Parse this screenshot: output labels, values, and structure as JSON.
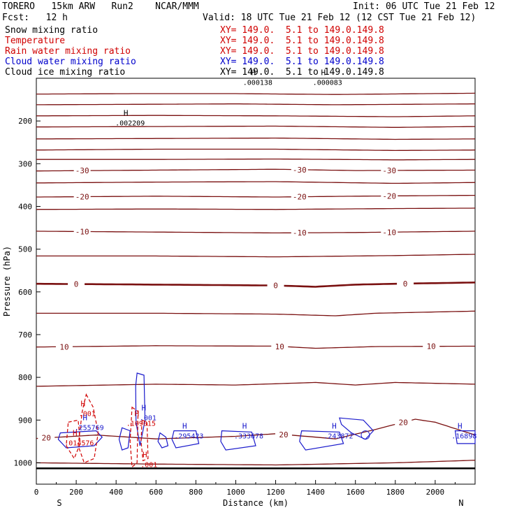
{
  "header": {
    "model": "TORERO   15km ARW   Run2    NCAR/MMM",
    "init": "Init: 06 UTC Tue 21 Feb 12",
    "fcst": "Fcst:   12 h",
    "valid": "Valid: 18 UTC Tue 21 Feb 12 (12 CST Tue 21 Feb 12)"
  },
  "legend": [
    {
      "name": "Snow mixing ratio",
      "color": "#000000",
      "xy": "XY= 149.0.  5.1 to 149.0.149.8"
    },
    {
      "name": "Temperature",
      "color": "#d00000",
      "xy": "XY= 149.0.  5.1 to 149.0.149.8"
    },
    {
      "name": "Rain water mixing ratio",
      "color": "#d00000",
      "xy": "XY= 149.0.  5.1 to 149.0.149.8"
    },
    {
      "name": "Cloud water mixing ratio",
      "color": "#0000cc",
      "xy": "XY= 149.0.  5.1 to 149.0.149.8"
    },
    {
      "name": "Cloud ice mixing ratio",
      "color": "#000000",
      "xy": "XY= 149.0.  5.1 to 149.0.149.8"
    }
  ],
  "chart_data": {
    "type": "cross-section",
    "xlabel": "Distance (km)",
    "ylabel": "Pressure (hPa)",
    "xlim": [
      0,
      2200
    ],
    "ylim": [
      1050,
      100
    ],
    "x_ticks": [
      0,
      200,
      400,
      600,
      800,
      1000,
      1200,
      1400,
      1600,
      1800,
      2000
    ],
    "y_ticks": [
      200,
      300,
      400,
      500,
      600,
      700,
      800,
      900,
      1000
    ],
    "end_labels": {
      "left": "S",
      "right": "N"
    },
    "temperature_contours": [
      {
        "label": "",
        "pressures": [
          [
            0,
            137
          ],
          [
            500,
            136
          ],
          [
            1000,
            136
          ],
          [
            1500,
            138
          ],
          [
            2200,
            135
          ]
        ]
      },
      {
        "label": "",
        "pressures": [
          [
            0,
            162
          ],
          [
            500,
            161
          ],
          [
            1000,
            160
          ],
          [
            1500,
            162
          ],
          [
            2200,
            160
          ]
        ]
      },
      {
        "label": "",
        "pressures": [
          [
            0,
            188
          ],
          [
            600,
            187
          ],
          [
            1200,
            188
          ],
          [
            1800,
            190
          ],
          [
            2200,
            188
          ]
        ]
      },
      {
        "label": "",
        "pressures": [
          [
            0,
            214
          ],
          [
            600,
            213
          ],
          [
            1200,
            212
          ],
          [
            1800,
            215
          ],
          [
            2200,
            213
          ]
        ]
      },
      {
        "label": "",
        "pressures": [
          [
            0,
            242
          ],
          [
            600,
            241
          ],
          [
            1200,
            240
          ],
          [
            1800,
            243
          ],
          [
            2200,
            242
          ]
        ]
      },
      {
        "label": "",
        "pressures": [
          [
            0,
            268
          ],
          [
            600,
            266
          ],
          [
            1200,
            266
          ],
          [
            1800,
            269
          ],
          [
            2200,
            268
          ]
        ]
      },
      {
        "label": "",
        "pressures": [
          [
            0,
            290
          ],
          [
            600,
            290
          ],
          [
            1200,
            289
          ],
          [
            1800,
            291
          ],
          [
            2200,
            290
          ]
        ]
      },
      {
        "label": "-30",
        "pressures": [
          [
            0,
            317
          ],
          [
            600,
            315
          ],
          [
            1200,
            313
          ],
          [
            1600,
            316
          ],
          [
            2200,
            315
          ]
        ]
      },
      {
        "label": "",
        "pressures": [
          [
            0,
            345
          ],
          [
            600,
            343
          ],
          [
            1200,
            342
          ],
          [
            1800,
            346
          ],
          [
            2200,
            344
          ]
        ]
      },
      {
        "label": "-20",
        "pressures": [
          [
            0,
            378
          ],
          [
            600,
            376
          ],
          [
            1200,
            378
          ],
          [
            1600,
            376
          ],
          [
            2200,
            374
          ]
        ]
      },
      {
        "label": "",
        "pressures": [
          [
            0,
            407
          ],
          [
            600,
            406
          ],
          [
            1200,
            407
          ],
          [
            1800,
            405
          ],
          [
            2200,
            404
          ]
        ]
      },
      {
        "label": "-10",
        "pressures": [
          [
            0,
            458
          ],
          [
            600,
            460
          ],
          [
            1200,
            462
          ],
          [
            1600,
            461
          ],
          [
            2200,
            458
          ]
        ]
      },
      {
        "label": "",
        "pressures": [
          [
            0,
            516
          ],
          [
            600,
            516
          ],
          [
            1200,
            518
          ],
          [
            1800,
            515
          ],
          [
            2200,
            512
          ]
        ]
      },
      {
        "label": "0",
        "bold": true,
        "pressures": [
          [
            0,
            581
          ],
          [
            600,
            583
          ],
          [
            1200,
            585
          ],
          [
            1400,
            588
          ],
          [
            1600,
            583
          ],
          [
            1800,
            581
          ],
          [
            2200,
            578
          ]
        ]
      },
      {
        "label": "",
        "pressures": [
          [
            0,
            650
          ],
          [
            600,
            650
          ],
          [
            1200,
            652
          ],
          [
            1500,
            656
          ],
          [
            1700,
            650
          ],
          [
            2200,
            645
          ]
        ]
      },
      {
        "label": "10",
        "pressures": [
          [
            0,
            729
          ],
          [
            600,
            726
          ],
          [
            1200,
            727
          ],
          [
            1400,
            732
          ],
          [
            1700,
            728
          ],
          [
            2200,
            727
          ]
        ]
      },
      {
        "label": "",
        "pressures": [
          [
            0,
            821
          ],
          [
            600,
            816
          ],
          [
            1000,
            818
          ],
          [
            1400,
            812
          ],
          [
            1600,
            818
          ],
          [
            1800,
            812
          ],
          [
            2200,
            816
          ]
        ]
      },
      {
        "label": "20",
        "pressures": [
          [
            0,
            943
          ],
          [
            300,
            935
          ],
          [
            600,
            944
          ],
          [
            1000,
            938
          ],
          [
            1200,
            932
          ],
          [
            1500,
            944
          ],
          [
            1700,
            922
          ],
          [
            1900,
            898
          ],
          [
            2000,
            905
          ],
          [
            2200,
            935
          ]
        ]
      },
      {
        "label": "",
        "pressures": [
          [
            0,
            1000
          ],
          [
            600,
            1003
          ],
          [
            1200,
            1005
          ],
          [
            1800,
            1000
          ],
          [
            2200,
            994
          ]
        ]
      }
    ],
    "ground_pressure": 1013,
    "maxima_labels": [
      {
        "field": "Snow mixing ratio",
        "value": ".002209",
        "x": 470,
        "p": 207
      },
      {
        "field": "Snow mixing ratio",
        "value": ".000138",
        "x": 1110,
        "p": 112
      },
      {
        "field": "Snow mixing ratio",
        "value": ".000083",
        "x": 1460,
        "p": 112
      },
      {
        "field": "Rain water mixing ratio",
        "value": ".001",
        "x": 255,
        "p": 887
      },
      {
        "field": "Rain water mixing ratio",
        "value": ".109015",
        "x": 525,
        "p": 910
      },
      {
        "field": "Rain water mixing ratio",
        "value": ".014576",
        "x": 215,
        "p": 956
      },
      {
        "field": "Rain water mixing ratio",
        "value": ".001",
        "x": 565,
        "p": 1007
      },
      {
        "field": "Cloud water mixing ratio",
        "value": ".255769",
        "x": 265,
        "p": 920
      },
      {
        "field": "Cloud water mixing ratio",
        "value": ".001",
        "x": 560,
        "p": 897
      },
      {
        "field": "Cloud water mixing ratio",
        "value": ".295423",
        "x": 765,
        "p": 940
      },
      {
        "field": "Cloud water mixing ratio",
        "value": ".333678",
        "x": 1065,
        "p": 940
      },
      {
        "field": "Cloud water mixing ratio",
        "value": ".243872",
        "x": 1515,
        "p": 940
      },
      {
        "field": "Cloud water mixing ratio",
        "value": ".16898",
        "x": 2145,
        "p": 940
      }
    ]
  }
}
